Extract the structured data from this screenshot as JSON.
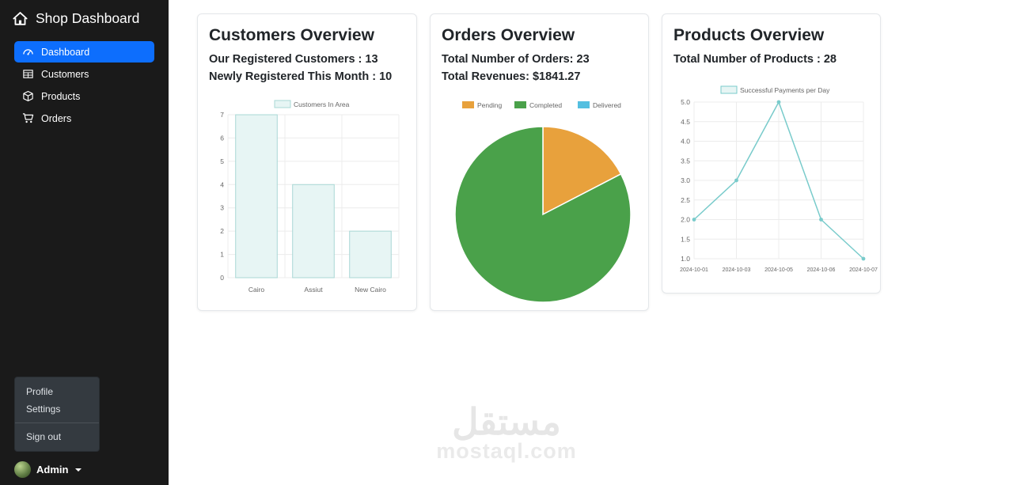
{
  "sidebar": {
    "brand": "Shop Dashboard",
    "items": [
      {
        "label": "Dashboard"
      },
      {
        "label": "Customers"
      },
      {
        "label": "Products"
      },
      {
        "label": "Orders"
      }
    ],
    "menu": {
      "profile": "Profile",
      "settings": "Settings",
      "signout": "Sign out"
    },
    "user": "Admin"
  },
  "cards": [
    {
      "title": "Customers Overview",
      "stats": [
        "Our Registered Customers : 13",
        "Newly Registered This Month : 10"
      ]
    },
    {
      "title": "Orders Overview",
      "stats": [
        "Total Number of Orders: 23",
        "Total Revenues: $1841.27"
      ]
    },
    {
      "title": "Products Overview",
      "stats": [
        "Total Number of Products : 28"
      ]
    }
  ],
  "watermark": {
    "title": "مستقل",
    "domain": "mostaql.com"
  },
  "chart_data": [
    {
      "type": "bar",
      "legend": "Customers In Area",
      "categories": [
        "Cairo",
        "Assiut",
        "New Cairo"
      ],
      "values": [
        7,
        4,
        2
      ],
      "ylim": [
        0,
        7
      ],
      "yticks": [
        0,
        1,
        2,
        3,
        4,
        5,
        6,
        7
      ],
      "bar_fill": "#e7f5f4",
      "bar_stroke": "#a9d8d5",
      "grid": true,
      "legend_position": "top"
    },
    {
      "type": "pie",
      "series": [
        {
          "name": "Pending",
          "value": 4,
          "color": "#e8a13c"
        },
        {
          "name": "Completed",
          "value": 19,
          "color": "#4aa14a"
        },
        {
          "name": "Delivered",
          "value": 0,
          "color": "#54bfe0"
        }
      ],
      "legend_position": "top"
    },
    {
      "type": "line",
      "legend": "Successful Payments per Day",
      "x": [
        "2024-10-01",
        "2024-10-03",
        "2024-10-05",
        "2024-10-06",
        "2024-10-07"
      ],
      "values": [
        2,
        3,
        5,
        2,
        1
      ],
      "ylim": [
        1,
        5
      ],
      "yticks": [
        1,
        1.5,
        2,
        2.5,
        3,
        3.5,
        4,
        4.5,
        5
      ],
      "line_color": "#79cbcb",
      "point_color": "#79cbcb",
      "legend_fill": "#e7f5f4",
      "grid": true,
      "legend_position": "top"
    }
  ]
}
